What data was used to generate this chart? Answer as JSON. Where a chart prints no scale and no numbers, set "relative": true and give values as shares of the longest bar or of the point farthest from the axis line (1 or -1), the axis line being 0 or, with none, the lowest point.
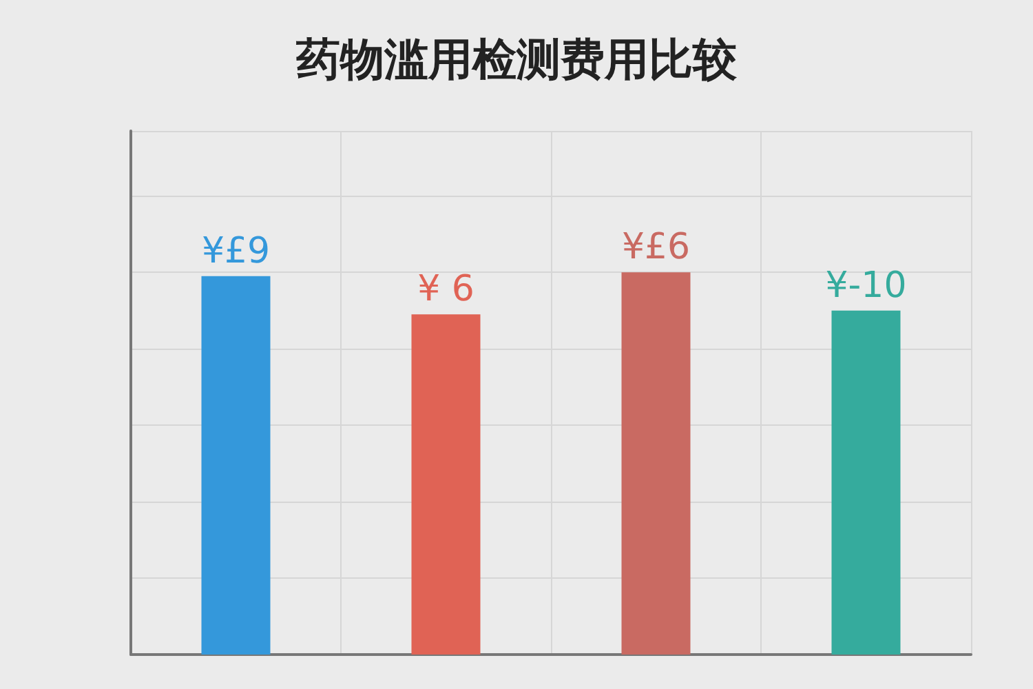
{
  "chart_data": {
    "type": "bar",
    "title": "药物滥用检测费用比较",
    "relative": true,
    "categories": [
      null,
      null,
      null,
      null
    ],
    "values": [
      0.99,
      0.89,
      1,
      0.9
    ],
    "colors": [
      "#3498db",
      "#e06355",
      "#c96a62",
      "#35ab9d"
    ],
    "annotations": [
      "¥£9",
      "¥ 6",
      "¥£6",
      "¥-10"
    ],
    "grid": true
  }
}
